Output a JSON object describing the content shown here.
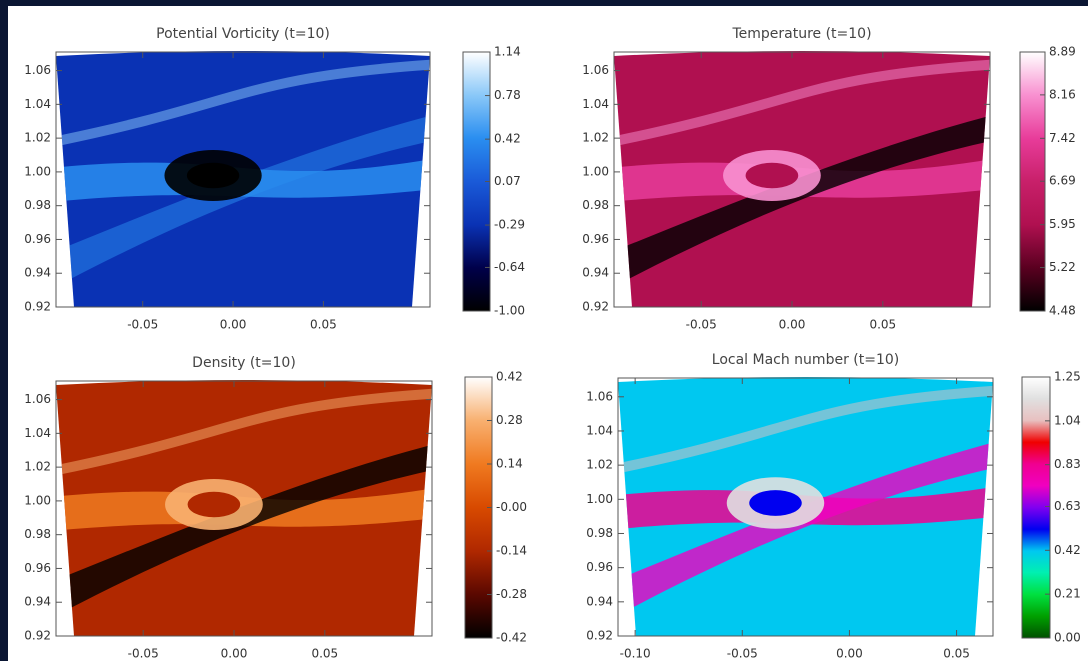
{
  "chart_data": [
    {
      "type": "heatmap",
      "title": "Potential Vorticity (t=10)",
      "xlim": [
        -0.098,
        0.109
      ],
      "xticks": [
        -0.05,
        {
          "value": 0,
          "label": "0.00"
        },
        0.05
      ],
      "ylim": [
        0.92,
        1.071
      ],
      "yticks": [
        1.06,
        1.04,
        1.02,
        {
          "value": 1,
          "label": "1.00"
        },
        0.98,
        0.96,
        0.94,
        0.92
      ],
      "clim": [
        -1,
        1.14
      ],
      "cticks": [
        1.14,
        0.78,
        0.42,
        0.07,
        -0.29,
        -0.64,
        {
          "value": -1,
          "label": "-1.00"
        }
      ],
      "colormap": [
        "#000000",
        "#00004a",
        "#0a32b4",
        "#1a5ad8",
        "#2a8ef0",
        "#8ac8f8",
        "#ffffff"
      ]
    },
    {
      "type": "heatmap",
      "title": "Temperature (t=10)",
      "xlim": [
        -0.098,
        0.109
      ],
      "xticks": [
        -0.05,
        {
          "value": 0,
          "label": "0.00"
        },
        0.05
      ],
      "ylim": [
        0.92,
        1.071
      ],
      "yticks": [
        1.06,
        1.04,
        1.02,
        {
          "value": 1,
          "label": "1.00"
        },
        0.98,
        0.96,
        0.94,
        0.92
      ],
      "clim": [
        4.48,
        8.89
      ],
      "cticks": [
        8.89,
        8.16,
        7.42,
        6.69,
        5.95,
        5.22,
        4.48
      ],
      "colormap": [
        "#000000",
        "#5a0020",
        "#b01050",
        "#c8206a",
        "#e83c9a",
        "#f890d0",
        "#ffffff"
      ]
    },
    {
      "type": "heatmap",
      "title": "Density (t=10)",
      "xlim": [
        -0.098,
        0.109
      ],
      "xticks": [
        -0.05,
        {
          "value": 0,
          "label": "0.00"
        },
        0.05
      ],
      "ylim": [
        0.92,
        1.071
      ],
      "yticks": [
        1.06,
        1.04,
        1.02,
        {
          "value": 1,
          "label": "1.00"
        },
        0.98,
        0.96,
        0.94,
        0.92
      ],
      "clim": [
        -0.42,
        0.42
      ],
      "cticks": [
        0.42,
        0.28,
        0.14,
        {
          "value": 0,
          "label": "-0.00"
        },
        -0.14,
        -0.28,
        -0.42
      ],
      "colormap": [
        "#000000",
        "#5a0800",
        "#b02800",
        "#d84a00",
        "#f07a20",
        "#f8b070",
        "#ffffff"
      ]
    },
    {
      "type": "heatmap",
      "title": "Local Mach number (t=10)",
      "xlim": [
        -0.108,
        0.067
      ],
      "xticks": [
        {
          "value": -0.1,
          "label": "-0.10"
        },
        -0.05,
        {
          "value": 0,
          "label": "0.00"
        },
        0.05
      ],
      "ylim": [
        0.92,
        1.071
      ],
      "yticks": [
        1.06,
        1.04,
        1.02,
        {
          "value": 1,
          "label": "1.00"
        },
        0.98,
        0.96,
        0.94,
        0.92
      ],
      "clim": [
        0,
        1.25
      ],
      "cticks": [
        1.25,
        1.04,
        0.83,
        0.63,
        0.42,
        0.21,
        {
          "value": 0,
          "label": "0.00"
        }
      ],
      "colormap": [
        "#005000",
        "#00a000",
        "#00e040",
        "#00f0b0",
        "#00c8f0",
        "#0000f0",
        "#8000f0",
        "#f000c0",
        "#f00090",
        "#f00000",
        "#e8c0c0",
        "#e0e0e0",
        "#ffffff"
      ]
    }
  ]
}
